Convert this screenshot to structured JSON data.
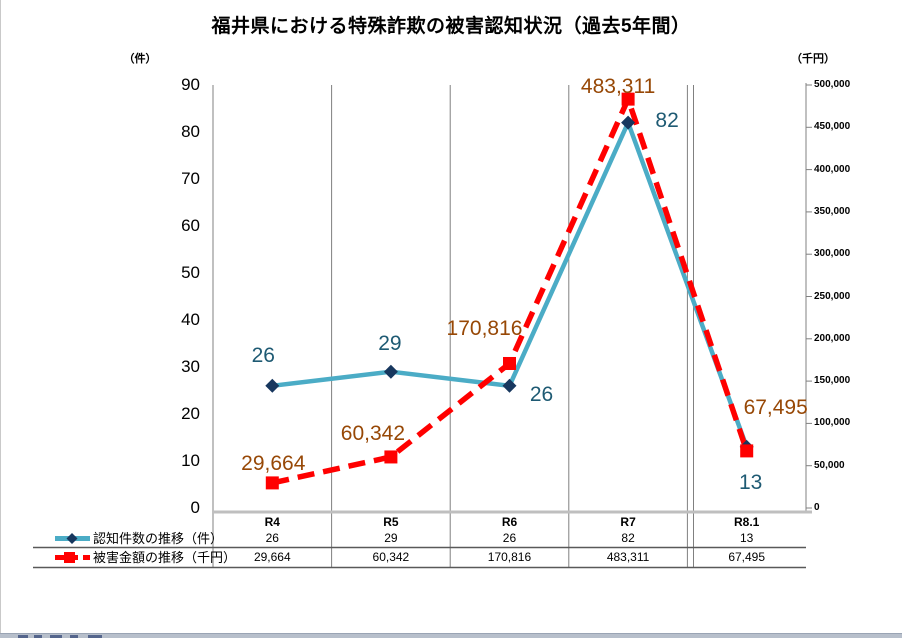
{
  "title": "福井県における特殊詐欺の被害認知状況（過去5年間）",
  "left_axis": {
    "unit": "（件）",
    "min": 0,
    "max": 90,
    "ticks": [
      {
        "v": 90,
        "t": "90"
      },
      {
        "v": 80,
        "t": "80"
      },
      {
        "v": 70,
        "t": "70"
      },
      {
        "v": 60,
        "t": "60"
      },
      {
        "v": 50,
        "t": "50"
      },
      {
        "v": 40,
        "t": "40"
      },
      {
        "v": 30,
        "t": "30"
      },
      {
        "v": 20,
        "t": "20"
      },
      {
        "v": 10,
        "t": "10"
      },
      {
        "v": 0,
        "t": "0"
      }
    ]
  },
  "right_axis": {
    "unit": "（千円）",
    "min": 0,
    "max": 500000,
    "ticks": [
      {
        "v": 500000,
        "t": "500,000"
      },
      {
        "v": 450000,
        "t": "450,000"
      },
      {
        "v": 400000,
        "t": "400,000"
      },
      {
        "v": 350000,
        "t": "350,000"
      },
      {
        "v": 300000,
        "t": "300,000"
      },
      {
        "v": 250000,
        "t": "250,000"
      },
      {
        "v": 200000,
        "t": "200,000"
      },
      {
        "v": 150000,
        "t": "150,000"
      },
      {
        "v": 100000,
        "t": "100,000"
      },
      {
        "v": 50000,
        "t": "50,000"
      },
      {
        "v": 0,
        "t": "0"
      }
    ]
  },
  "chart_data": {
    "type": "line",
    "categories": [
      "R4",
      "R5",
      "R6",
      "R7",
      "R8.1"
    ],
    "series": [
      {
        "name": "認知件数の推移（件）",
        "axis": "left",
        "values": [
          26,
          29,
          26,
          82,
          13
        ],
        "labels": [
          "26",
          "29",
          "26",
          "82",
          "13"
        ],
        "line_color": "#4BACC6",
        "line_style": "solid",
        "marker": "diamond",
        "marker_color": "#17375E",
        "label_color": "#1E5A73"
      },
      {
        "name": "被害金額の推移（千円）",
        "axis": "right",
        "values": [
          29664,
          60342,
          170816,
          483311,
          67495
        ],
        "labels": [
          "29,664",
          "60,342",
          "170,816",
          "483,311",
          "67,495"
        ],
        "line_color": "#FF0000",
        "line_style": "dashed",
        "marker": "square",
        "marker_color": "#FF0000",
        "label_color": "#974806"
      }
    ],
    "left_ylim": [
      0,
      90
    ],
    "right_ylim": [
      0,
      500000
    ],
    "grid": "vertical-only",
    "legend_position": "bottom-table-left",
    "annotations": [
      "double vertical rule before R8.1 column"
    ]
  }
}
